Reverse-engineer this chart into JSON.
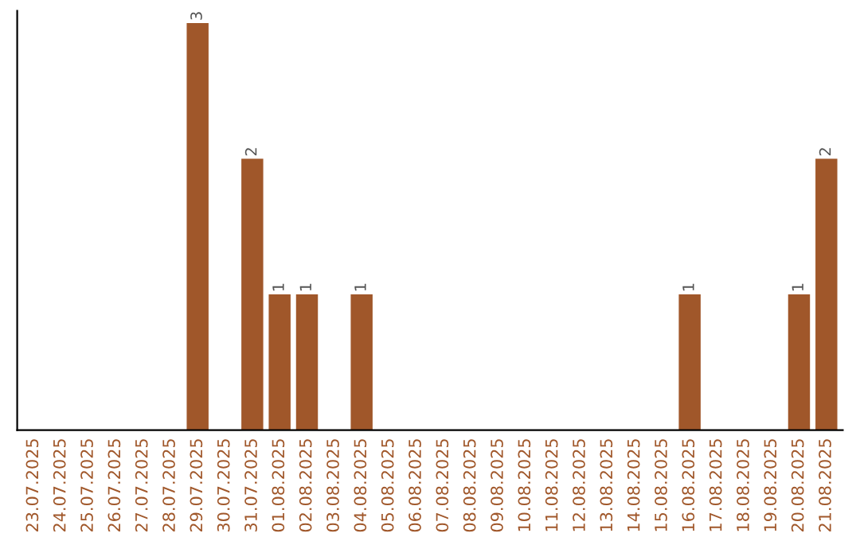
{
  "chart_data": {
    "type": "bar",
    "categories": [
      "23.07.2025",
      "24.07.2025",
      "25.07.2025",
      "26.07.2025",
      "27.07.2025",
      "28.07.2025",
      "29.07.2025",
      "30.07.2025",
      "31.07.2025",
      "01.08.2025",
      "02.08.2025",
      "03.08.2025",
      "04.08.2025",
      "05.08.2025",
      "06.08.2025",
      "07.08.2025",
      "08.08.2025",
      "09.08.2025",
      "10.08.2025",
      "11.08.2025",
      "12.08.2025",
      "13.08.2025",
      "14.08.2025",
      "15.08.2025",
      "16.08.2025",
      "17.08.2025",
      "18.08.2025",
      "19.08.2025",
      "20.08.2025",
      "21.08.2025"
    ],
    "values": [
      0,
      0,
      0,
      0,
      0,
      0,
      3,
      0,
      2,
      1,
      1,
      0,
      1,
      0,
      0,
      0,
      0,
      0,
      0,
      0,
      0,
      0,
      0,
      0,
      1,
      0,
      0,
      0,
      1,
      2
    ],
    "color": "#a0572a",
    "value_labels": [
      null,
      null,
      null,
      null,
      null,
      null,
      "3",
      null,
      "2",
      "1",
      "1",
      null,
      "1",
      null,
      null,
      null,
      null,
      null,
      null,
      null,
      null,
      null,
      null,
      null,
      "1",
      null,
      null,
      null,
      "1",
      "2"
    ],
    "tick_labels": "x",
    "grid": false,
    "legend": false
  }
}
